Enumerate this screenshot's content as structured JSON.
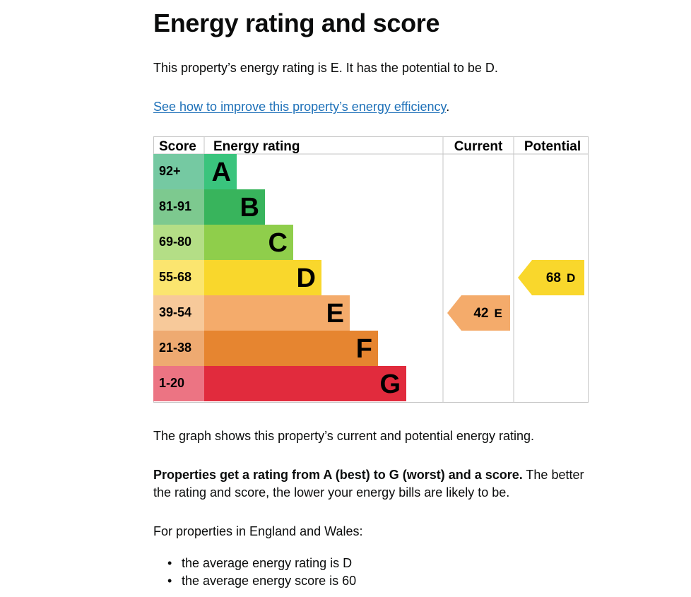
{
  "page": {
    "title": "Energy rating and score",
    "summary": "This property’s energy rating is E. It has the potential to be D.",
    "improve_link": "See how to improve this property’s energy efficiency",
    "improve_link_suffix": "."
  },
  "chart_data": {
    "type": "table",
    "headers": {
      "score": "Score",
      "rating": "Energy rating",
      "current": "Current",
      "potential": "Potential"
    },
    "bands": [
      {
        "range": "92+",
        "letter": "A",
        "color": "#3ac47d",
        "score_color": "#75c9a2"
      },
      {
        "range": "81-91",
        "letter": "B",
        "color": "#38b45c",
        "score_color": "#7dc98f"
      },
      {
        "range": "69-80",
        "letter": "C",
        "color": "#8fce4b",
        "score_color": "#b4de86"
      },
      {
        "range": "55-68",
        "letter": "D",
        "color": "#f9d72c",
        "score_color": "#fbe56f"
      },
      {
        "range": "39-54",
        "letter": "E",
        "color": "#f4ab6b",
        "score_color": "#f7c99a"
      },
      {
        "range": "21-38",
        "letter": "F",
        "color": "#e68530",
        "score_color": "#eeaa71"
      },
      {
        "range": "1-20",
        "letter": "G",
        "color": "#e12b3d",
        "score_color": "#ec7483"
      }
    ],
    "current": {
      "score": "42",
      "rating": "E",
      "color": "#f4ab6b"
    },
    "potential": {
      "score": "68",
      "rating": "D",
      "color": "#f9d72c"
    }
  },
  "explanation": {
    "graph": "The graph shows this property’s current and potential energy rating.",
    "ratings_bold": "Properties get a rating from A (best) to G (worst) and a score.",
    "ratings_rest": " The better the rating and score, the lower your energy bills are likely to be.",
    "region": "For properties in England and Wales:",
    "averages": [
      "the average energy rating is D",
      "the average energy score is 60"
    ]
  }
}
